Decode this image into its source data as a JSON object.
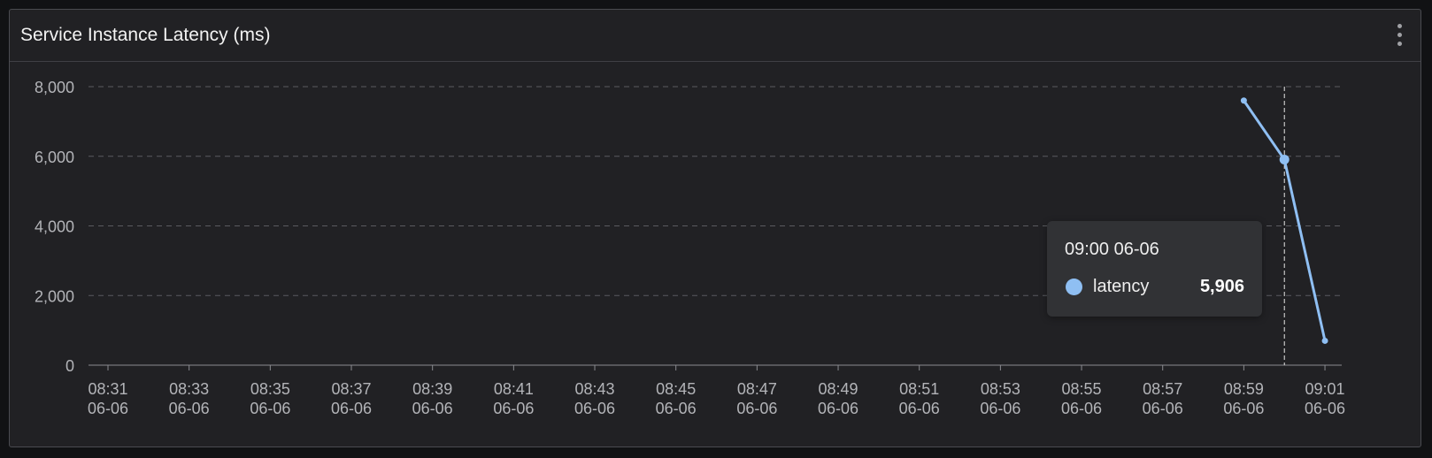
{
  "panel": {
    "title": "Service Instance Latency (ms)",
    "menu_icon": "more-vertical-icon"
  },
  "chart_data": {
    "type": "line",
    "title": "Service Instance Latency (ms)",
    "xlabel": "",
    "ylabel": "",
    "ylim": [
      0,
      8000
    ],
    "yticks": [
      "8,000",
      "6,000",
      "4,000",
      "2,000",
      "0"
    ],
    "x_categories": [
      {
        "time": "08:31",
        "date": "06-06"
      },
      {
        "time": "08:33",
        "date": "06-06"
      },
      {
        "time": "08:35",
        "date": "06-06"
      },
      {
        "time": "08:37",
        "date": "06-06"
      },
      {
        "time": "08:39",
        "date": "06-06"
      },
      {
        "time": "08:41",
        "date": "06-06"
      },
      {
        "time": "08:43",
        "date": "06-06"
      },
      {
        "time": "08:45",
        "date": "06-06"
      },
      {
        "time": "08:47",
        "date": "06-06"
      },
      {
        "time": "08:49",
        "date": "06-06"
      },
      {
        "time": "08:51",
        "date": "06-06"
      },
      {
        "time": "08:53",
        "date": "06-06"
      },
      {
        "time": "08:55",
        "date": "06-06"
      },
      {
        "time": "08:57",
        "date": "06-06"
      },
      {
        "time": "08:59",
        "date": "06-06"
      },
      {
        "time": "09:01",
        "date": "06-06"
      }
    ],
    "series": [
      {
        "name": "latency",
        "color": "#8fbff3",
        "points": [
          {
            "x": "08:59 06-06",
            "y": 7600
          },
          {
            "x": "09:00 06-06",
            "y": 5906
          },
          {
            "x": "09:01 06-06",
            "y": 700
          }
        ]
      }
    ],
    "grid": true,
    "crosshair_x": "09:00 06-06"
  },
  "tooltip": {
    "title": "09:00 06-06",
    "series_name": "latency",
    "value": "5,906",
    "color": "#8fbff3"
  }
}
